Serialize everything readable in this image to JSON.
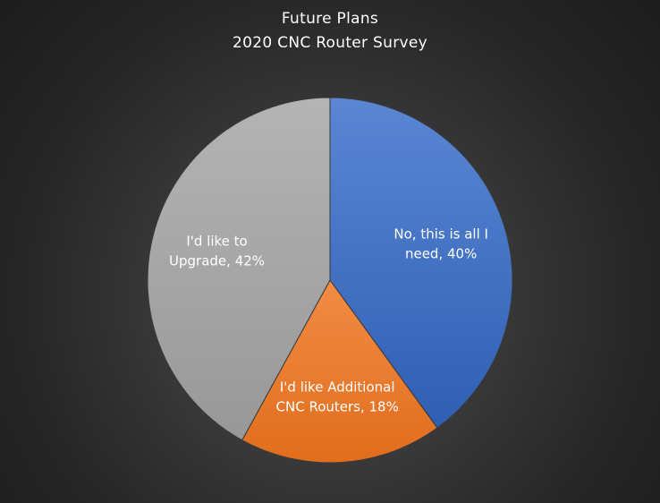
{
  "chart_data": {
    "type": "pie",
    "title": "Future Plans",
    "subtitle": "2020 CNC Router Survey",
    "categories": [
      "No, this is all I need",
      "I'd like Additional CNC Routers",
      "I'd like to Upgrade"
    ],
    "values": [
      40,
      18,
      42
    ],
    "unit": "%",
    "labels": [
      [
        "No, this is all I",
        "need, 40%"
      ],
      [
        "I'd like Additional",
        "CNC Routers, 18%"
      ],
      [
        "I'd like to",
        "Upgrade, 42%"
      ]
    ],
    "colors": [
      "#4472C4",
      "#ED7D31",
      "#A5A5A5"
    ],
    "legend": "none"
  }
}
